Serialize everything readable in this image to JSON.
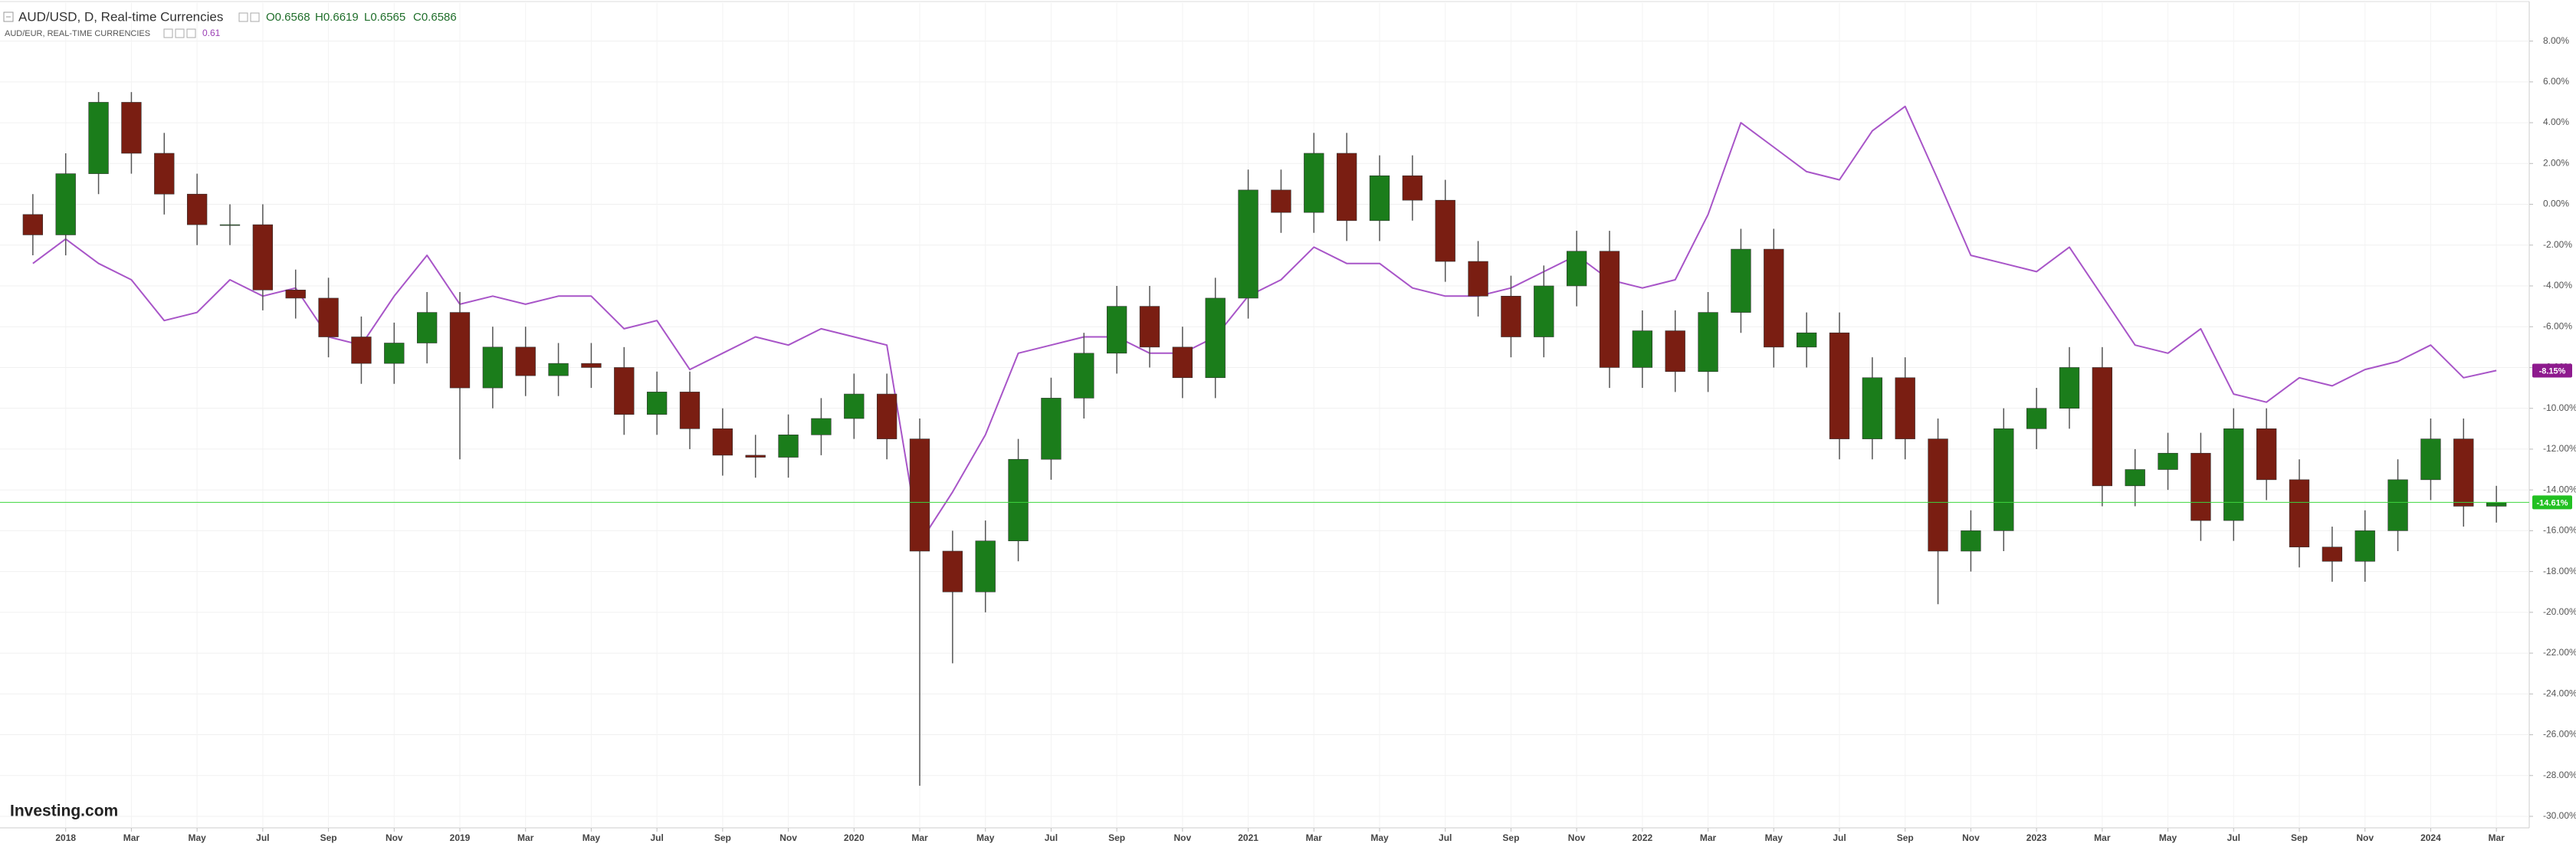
{
  "chart_data": {
    "type": "candlestick",
    "logo": "Investing.com",
    "grid": true,
    "xlim": [
      "2017-11",
      "2024-04"
    ],
    "ylim": [
      -30,
      8
    ],
    "yticks": [
      {
        "value": 8,
        "label": "8.00%"
      },
      {
        "value": 6,
        "label": "6.00%"
      },
      {
        "value": 4,
        "label": "4.00%"
      },
      {
        "value": 2,
        "label": "2.00%"
      },
      {
        "value": 0,
        "label": "0.00%"
      },
      {
        "value": -2,
        "label": "-2.00%"
      },
      {
        "value": -4,
        "label": "-4.00%"
      },
      {
        "value": -6,
        "label": "-6.00%"
      },
      {
        "value": -8,
        "label": "-8.00%"
      },
      {
        "value": -10,
        "label": "-10.00%"
      },
      {
        "value": -12,
        "label": "-12.00%"
      },
      {
        "value": -14,
        "label": "-14.00%"
      },
      {
        "value": -16,
        "label": "-16.00%"
      },
      {
        "value": -18,
        "label": "-18.00%"
      },
      {
        "value": -20,
        "label": "-20.00%"
      },
      {
        "value": -22,
        "label": "-22.00%"
      },
      {
        "value": -24,
        "label": "-24.00%"
      },
      {
        "value": -26,
        "label": "-26.00%"
      },
      {
        "value": -28,
        "label": "-28.00%"
      },
      {
        "value": -30,
        "label": "-30.00%"
      }
    ],
    "xticks": [
      {
        "value": "2018-01",
        "label": "2018"
      },
      {
        "value": "2018-03",
        "label": "Mar"
      },
      {
        "value": "2018-05",
        "label": "May"
      },
      {
        "value": "2018-07",
        "label": "Jul"
      },
      {
        "value": "2018-09",
        "label": "Sep"
      },
      {
        "value": "2018-11",
        "label": "Nov"
      },
      {
        "value": "2019-01",
        "label": "2019"
      },
      {
        "value": "2019-03",
        "label": "Mar"
      },
      {
        "value": "2019-05",
        "label": "May"
      },
      {
        "value": "2019-07",
        "label": "Jul"
      },
      {
        "value": "2019-09",
        "label": "Sep"
      },
      {
        "value": "2019-11",
        "label": "Nov"
      },
      {
        "value": "2020-01",
        "label": "2020"
      },
      {
        "value": "2020-03",
        "label": "Mar"
      },
      {
        "value": "2020-05",
        "label": "May"
      },
      {
        "value": "2020-07",
        "label": "Jul"
      },
      {
        "value": "2020-09",
        "label": "Sep"
      },
      {
        "value": "2020-11",
        "label": "Nov"
      },
      {
        "value": "2021-01",
        "label": "2021"
      },
      {
        "value": "2021-03",
        "label": "Mar"
      },
      {
        "value": "2021-05",
        "label": "May"
      },
      {
        "value": "2021-07",
        "label": "Jul"
      },
      {
        "value": "2021-09",
        "label": "Sep"
      },
      {
        "value": "2021-11",
        "label": "Nov"
      },
      {
        "value": "2022-01",
        "label": "2022"
      },
      {
        "value": "2022-03",
        "label": "Mar"
      },
      {
        "value": "2022-05",
        "label": "May"
      },
      {
        "value": "2022-07",
        "label": "Jul"
      },
      {
        "value": "2022-09",
        "label": "Sep"
      },
      {
        "value": "2022-11",
        "label": "Nov"
      },
      {
        "value": "2023-01",
        "label": "2023"
      },
      {
        "value": "2023-03",
        "label": "Mar"
      },
      {
        "value": "2023-05",
        "label": "May"
      },
      {
        "value": "2023-07",
        "label": "Jul"
      },
      {
        "value": "2023-09",
        "label": "Sep"
      },
      {
        "value": "2023-11",
        "label": "Nov"
      },
      {
        "value": "2024-01",
        "label": "2024"
      },
      {
        "value": "2024-03",
        "label": "Mar"
      }
    ],
    "x": [
      "2017-12",
      "2018-01",
      "2018-02",
      "2018-03",
      "2018-04",
      "2018-05",
      "2018-06",
      "2018-07",
      "2018-08",
      "2018-09",
      "2018-10",
      "2018-11",
      "2018-12",
      "2019-01",
      "2019-02",
      "2019-03",
      "2019-04",
      "2019-05",
      "2019-06",
      "2019-07",
      "2019-08",
      "2019-09",
      "2019-10",
      "2019-11",
      "2019-12",
      "2020-01",
      "2020-02",
      "2020-03",
      "2020-04",
      "2020-05",
      "2020-06",
      "2020-07",
      "2020-08",
      "2020-09",
      "2020-10",
      "2020-11",
      "2020-12",
      "2021-01",
      "2021-02",
      "2021-03",
      "2021-04",
      "2021-05",
      "2021-06",
      "2021-07",
      "2021-08",
      "2021-09",
      "2021-10",
      "2021-11",
      "2021-12",
      "2022-01",
      "2022-02",
      "2022-03",
      "2022-04",
      "2022-05",
      "2022-06",
      "2022-07",
      "2022-08",
      "2022-09",
      "2022-10",
      "2022-11",
      "2022-12",
      "2023-01",
      "2023-02",
      "2023-03",
      "2023-04",
      "2023-05",
      "2023-06",
      "2023-07",
      "2023-08",
      "2023-09",
      "2023-10",
      "2023-11",
      "2023-12",
      "2024-01",
      "2024-02",
      "2024-03"
    ],
    "series": [
      {
        "name": "AUD/USD, D, Real-time Currencies",
        "type": "candlestick",
        "up_color": "#1b7d1b",
        "down_color": "#7a1e12",
        "line_color": "#3ed63e",
        "label_color": "#22c022",
        "header": [
          {
            "label": "O",
            "value": 0.6568
          },
          {
            "label": "H",
            "value": 0.6619
          },
          {
            "label": "L",
            "value": 0.6565
          },
          {
            "label": "C",
            "value": 0.6586
          }
        ],
        "last_label": "-14.61%",
        "open": [
          -0.5,
          -1.5,
          1.5,
          5.0,
          2.5,
          0.5,
          -1.0,
          -1.0,
          -4.2,
          -4.6,
          -6.5,
          -7.8,
          -6.8,
          -5.3,
          -9.0,
          -7.0,
          -8.4,
          -7.8,
          -8.0,
          -10.3,
          -9.2,
          -11.0,
          -12.3,
          -12.4,
          -11.3,
          -10.5,
          -9.3,
          -11.5,
          -17.0,
          -19.0,
          -16.5,
          -12.5,
          -9.5,
          -7.3,
          -5.0,
          -7.0,
          -8.5,
          -4.6,
          0.7,
          -0.4,
          2.5,
          -0.8,
          1.4,
          0.2,
          -2.8,
          -4.5,
          -6.5,
          -4.0,
          -2.3,
          -8.0,
          -6.2,
          -8.2,
          -5.3,
          -2.2,
          -7.0,
          -6.3,
          -11.5,
          -8.5,
          -11.5,
          -17.0,
          -16.0,
          -11.0,
          -10.0,
          -8.0,
          -13.8,
          -13.0,
          -12.2,
          -15.5,
          -11.0,
          -13.5,
          -16.8,
          -17.5,
          -16.0,
          -13.5,
          -11.5,
          -14.8
        ],
        "high": [
          0.5,
          2.5,
          5.5,
          5.5,
          3.5,
          1.5,
          0.0,
          0.0,
          -3.2,
          -3.6,
          -5.5,
          -5.8,
          -4.3,
          -4.3,
          -6.0,
          -6.0,
          -6.8,
          -6.8,
          -7.0,
          -8.2,
          -8.2,
          -10.0,
          -11.3,
          -10.3,
          -9.5,
          -8.3,
          -8.3,
          -10.5,
          -16.0,
          -15.5,
          -11.5,
          -8.5,
          -6.3,
          -4.0,
          -4.0,
          -6.0,
          -3.6,
          1.7,
          1.7,
          3.5,
          3.5,
          2.4,
          2.4,
          1.2,
          -1.8,
          -3.5,
          -3.0,
          -1.3,
          -1.3,
          -5.2,
          -5.2,
          -4.3,
          -1.2,
          -1.2,
          -5.3,
          -5.3,
          -7.5,
          -7.5,
          -10.5,
          -15.0,
          -10.0,
          -9.0,
          -7.0,
          -7.0,
          -12.0,
          -11.2,
          -11.2,
          -10.0,
          -10.0,
          -12.5,
          -15.8,
          -15.0,
          -12.5,
          -10.5,
          -10.5,
          -13.8
        ],
        "low": [
          -2.5,
          -2.5,
          0.5,
          1.5,
          -0.5,
          -2.0,
          -2.0,
          -5.2,
          -5.6,
          -7.5,
          -8.8,
          -8.8,
          -7.8,
          -12.5,
          -10.0,
          -9.4,
          -9.4,
          -9.0,
          -11.3,
          -11.3,
          -12.0,
          -13.3,
          -13.4,
          -13.4,
          -12.3,
          -11.5,
          -12.5,
          -28.5,
          -22.5,
          -20.0,
          -17.5,
          -13.5,
          -10.5,
          -8.3,
          -8.0,
          -9.5,
          -9.5,
          -5.6,
          -1.4,
          -1.4,
          -1.8,
          -1.8,
          -0.8,
          -3.8,
          -5.5,
          -7.5,
          -7.5,
          -5.0,
          -9.0,
          -9.0,
          -9.2,
          -9.2,
          -6.3,
          -8.0,
          -8.0,
          -12.5,
          -12.5,
          -12.5,
          -19.6,
          -18.0,
          -17.0,
          -12.0,
          -11.0,
          -14.8,
          -14.8,
          -14.0,
          -16.5,
          -16.5,
          -14.5,
          -17.8,
          -18.5,
          -18.5,
          -17.0,
          -14.5,
          -15.8,
          -15.6
        ],
        "close": [
          -1.5,
          1.5,
          5.0,
          2.5,
          0.5,
          -1.0,
          -1.0,
          -4.2,
          -4.6,
          -6.5,
          -7.8,
          -6.8,
          -5.3,
          -9.0,
          -7.0,
          -8.4,
          -7.8,
          -8.0,
          -10.3,
          -9.2,
          -11.0,
          -12.3,
          -12.4,
          -11.3,
          -10.5,
          -9.3,
          -11.5,
          -17.0,
          -19.0,
          -16.5,
          -12.5,
          -9.5,
          -7.3,
          -5.0,
          -7.0,
          -8.5,
          -4.6,
          0.7,
          -0.4,
          2.5,
          -0.8,
          1.4,
          0.2,
          -2.8,
          -4.5,
          -6.5,
          -4.0,
          -2.3,
          -8.0,
          -6.2,
          -8.2,
          -5.3,
          -2.2,
          -7.0,
          -6.3,
          -11.5,
          -8.5,
          -11.5,
          -17.0,
          -16.0,
          -11.0,
          -10.0,
          -8.0,
          -13.8,
          -13.0,
          -12.2,
          -15.5,
          -11.0,
          -13.5,
          -16.8,
          -17.5,
          -16.0,
          -13.5,
          -11.5,
          -14.8,
          -14.61
        ]
      },
      {
        "name": "AUD/EUR, REAL-TIME CURRENCIES",
        "type": "line",
        "color": "#a855c8",
        "label_color": "#8e1a8e",
        "header_value": 0.61,
        "last_label": "-8.15%",
        "values": [
          -2.9,
          -1.7,
          -2.9,
          -3.7,
          -5.7,
          -5.3,
          -3.7,
          -4.5,
          -4.1,
          -6.5,
          -6.9,
          -4.5,
          -2.5,
          -4.9,
          -4.5,
          -4.9,
          -4.5,
          -4.5,
          -6.1,
          -5.7,
          -8.1,
          -7.3,
          -6.5,
          -6.9,
          -6.1,
          -6.5,
          -6.9,
          -16.6,
          -14.1,
          -11.3,
          -7.3,
          -6.9,
          -6.5,
          -6.5,
          -7.3,
          -7.3,
          -6.5,
          -4.5,
          -3.7,
          -2.1,
          -2.9,
          -2.9,
          -4.1,
          -4.5,
          -4.5,
          -4.1,
          -3.3,
          -2.5,
          -3.7,
          -4.1,
          -3.7,
          -0.5,
          4.0,
          2.8,
          1.6,
          1.2,
          3.6,
          4.8,
          1.2,
          -2.5,
          -2.9,
          -3.3,
          -2.1,
          -4.5,
          -6.9,
          -7.3,
          -6.1,
          -9.3,
          -9.7,
          -8.5,
          -8.9,
          -8.1,
          -7.7,
          -6.9,
          -8.5,
          -8.15
        ]
      }
    ]
  }
}
